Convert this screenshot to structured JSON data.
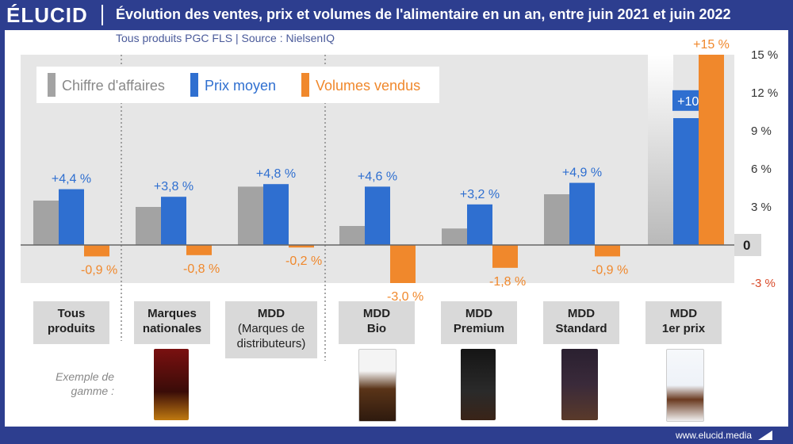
{
  "header": {
    "logo": "ÉLUCID",
    "title": "Évolution des ventes, prix et volumes de l'alimentaire en un an, entre juin 2021 et juin 2022",
    "subtitle": "Tous produits PGC FLS  |  Source : NielsenIQ"
  },
  "footer": {
    "url": "www.elucid.media"
  },
  "example_label": "Exemple de gamme  :",
  "colors": {
    "ca": "#a3a3a3",
    "prix": "#2f6fd0",
    "volumes": "#f0882c",
    "negative_axis": "#d94a2a",
    "band": "#e6e6e6",
    "brand": "#2d3e8f"
  },
  "chart_data": {
    "type": "bar",
    "categories": [
      "Tous produits",
      "Marques nationales",
      "MDD (Marques de distributeurs)",
      "MDD Bio",
      "MDD Premium",
      "MDD Standard",
      "MDD 1er prix"
    ],
    "category_lines": [
      {
        "l1": "Tous",
        "l2": "produits"
      },
      {
        "l1": "Marques",
        "l2": "nationales"
      },
      {
        "l1": "MDD",
        "l2": "(Marques de",
        "l3": "distributeurs)"
      },
      {
        "l1": "MDD",
        "l2": "Bio"
      },
      {
        "l1": "MDD",
        "l2": "Premium"
      },
      {
        "l1": "MDD",
        "l2": "Standard"
      },
      {
        "l1": "MDD",
        "l2": "1er prix"
      }
    ],
    "series": [
      {
        "name": "Chiffre d'affaires",
        "color": "#a3a3a3",
        "values": [
          3.5,
          3.0,
          4.6,
          1.5,
          1.3,
          4.0,
          15.0
        ],
        "labels": [
          "",
          "",
          "",
          "",
          "",
          "",
          ""
        ]
      },
      {
        "name": "Prix moyen",
        "color": "#2f6fd0",
        "values": [
          4.4,
          3.8,
          4.8,
          4.6,
          3.2,
          4.9,
          10.0
        ],
        "labels": [
          "+4,4 %",
          "+3,8 %",
          "+4,8 %",
          "+4,6 %",
          "+3,2 %",
          "+4,9 %",
          "+10 %"
        ]
      },
      {
        "name": "Volumes vendus",
        "color": "#f0882c",
        "values": [
          -0.9,
          -0.8,
          -0.2,
          -3.0,
          -1.8,
          -0.9,
          15.0
        ],
        "labels": [
          "-0,9 %",
          "-0,8 %",
          "-0,2 %",
          "-3,0 %",
          "-1,8 %",
          "-0,9 %",
          "+15 %"
        ]
      }
    ],
    "yticks": [
      {
        "v": 15,
        "label": "15 %"
      },
      {
        "v": 12,
        "label": "12 %"
      },
      {
        "v": 9,
        "label": "9 %"
      },
      {
        "v": 6,
        "label": "6 %"
      },
      {
        "v": 3,
        "label": "3 %"
      },
      {
        "v": 0,
        "label": "0"
      },
      {
        "v": -3,
        "label": "-3 %"
      }
    ],
    "ylim": [
      -3,
      15
    ],
    "legend": "top-left",
    "grid": false
  }
}
